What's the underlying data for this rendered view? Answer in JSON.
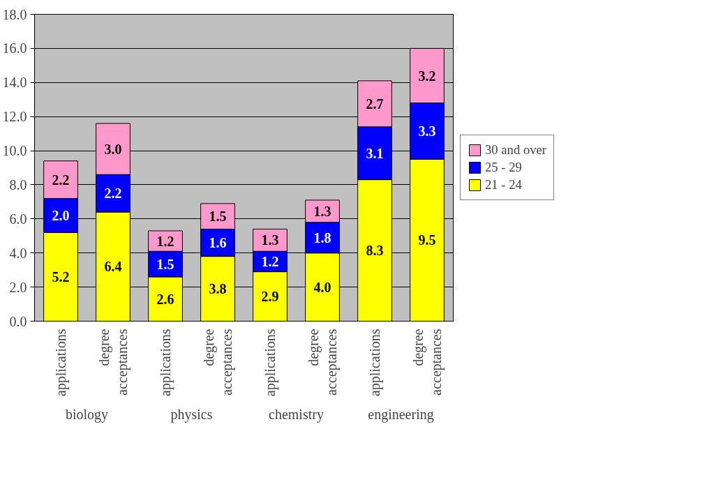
{
  "chart_data": {
    "type": "bar",
    "stacked": true,
    "categories": [
      "applications",
      "degree acceptances",
      "applications",
      "degree acceptances",
      "applications",
      "degree acceptances",
      "applications",
      "degree acceptances"
    ],
    "series": [
      {
        "name": "21 - 24",
        "color": "#ffff00",
        "values": [
          5.2,
          6.4,
          2.6,
          3.8,
          2.9,
          4.0,
          8.3,
          9.5
        ],
        "value_labels": [
          "5.2",
          "6.4",
          "2.6",
          "3.8",
          "2.9",
          "4.0",
          "8.3",
          "9.5"
        ]
      },
      {
        "name": "25 - 29",
        "color": "#0000ff",
        "values": [
          2.0,
          2.2,
          1.5,
          1.6,
          1.2,
          1.8,
          3.1,
          3.3
        ],
        "value_labels": [
          "2.0",
          "2.2",
          "1.5",
          "1.6",
          "1.2",
          "1.8",
          "3.1",
          "3.3"
        ]
      },
      {
        "name": "30 and over",
        "color": "#ff99cc",
        "values": [
          2.2,
          3.0,
          1.2,
          1.5,
          1.3,
          1.3,
          2.7,
          3.2
        ],
        "value_labels": [
          "2.2",
          "3.0",
          "1.2",
          "1.5",
          "1.3",
          "1.3",
          "2.7",
          "3.2"
        ]
      }
    ],
    "annotations": [
      "biology",
      "physics",
      "chemistry",
      "engineering"
    ],
    "ylim": [
      0,
      18
    ],
    "yticks": [
      {
        "value": 0,
        "label": "0.0"
      },
      {
        "value": 2,
        "label": "2.0"
      },
      {
        "value": 4,
        "label": "4.0"
      },
      {
        "value": 6,
        "label": "6.0"
      },
      {
        "value": 8,
        "label": "8.0"
      },
      {
        "value": 10,
        "label": "10.0"
      },
      {
        "value": 12,
        "label": "12.0"
      },
      {
        "value": 14,
        "label": "14.0"
      },
      {
        "value": 16,
        "label": "16.0"
      },
      {
        "value": 18,
        "label": "18.0"
      }
    ],
    "grid": "y",
    "legend": "right"
  }
}
